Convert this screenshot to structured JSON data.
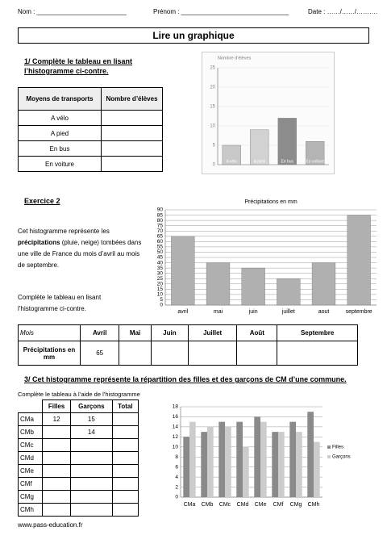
{
  "header": {
    "name": "Nom : _________________________",
    "firstname": "Prénom : ______________________________",
    "date": "Date : ……/……/………."
  },
  "title": "Lire un graphique",
  "section1": {
    "heading": "1/ Complète le tableau en lisant l’histogramme ci-contre.",
    "table": {
      "columns": [
        "Moyens de transports",
        "Nombre d’élèves"
      ],
      "rows": [
        "A vélo",
        "A pied",
        "En bus",
        "En voiture"
      ]
    }
  },
  "section2": {
    "heading": "Exercice 2",
    "text_start": "Cet histogramme représente les",
    "text_bold": "précipitations",
    "text_end": "(pluie, neige) tombées dans une ville de France du mois d’avril au mois de septembre.",
    "instruction": "Complète le tableau en lisant l’histogramme ci-contre.",
    "table": {
      "columns": [
        "Mois",
        "Avril",
        "Mai",
        "Juin",
        "Juillet",
        "Août",
        "Septembre"
      ],
      "row_label": "Précipitations en mm",
      "row_values": [
        65
      ]
    }
  },
  "section3": {
    "heading": "3/ Cet histogramme représente la répartition des filles et des garçons de CM d’une commune.",
    "instruction": "Complète le tableau à l’aide de l’histogramme",
    "table": {
      "columns": [
        "Filles",
        "Garçons",
        "Total"
      ],
      "rows": [
        {
          "label": "CMa",
          "filles": 12,
          "garcons": 15
        },
        {
          "label": "CMb",
          "garcons": 14
        },
        {
          "label": "CMc"
        },
        {
          "label": "CMd"
        },
        {
          "label": "CMe"
        },
        {
          "label": "CMf"
        },
        {
          "label": "CMg"
        },
        {
          "label": "CMh"
        }
      ]
    }
  },
  "chart_data": [
    {
      "type": "bar",
      "ylabel": "Nombre d’élèves",
      "categories": [
        "A vélo",
        "A pied",
        "En bus",
        "En voiture"
      ],
      "values": [
        5,
        9,
        12,
        6
      ],
      "colors": [
        "#c8c8c8",
        "#d2d2d2",
        "#8c8c8c",
        "#b4b4b4"
      ],
      "ylim": [
        0,
        25
      ],
      "yticks": [
        0,
        5,
        10,
        15,
        20,
        25
      ],
      "grid": true
    },
    {
      "type": "bar",
      "title": "Précipitations en mm",
      "categories": [
        "avril",
        "mai",
        "juin",
        "juillet",
        "aout",
        "septembre"
      ],
      "values": [
        65,
        40,
        35,
        25,
        40,
        85
      ],
      "color": "#b0b0b0",
      "ylim": [
        0,
        90
      ],
      "yticks": [
        0,
        5,
        10,
        15,
        20,
        25,
        30,
        35,
        40,
        45,
        50,
        55,
        60,
        65,
        70,
        75,
        80,
        85,
        90
      ],
      "grid": true
    },
    {
      "type": "grouped_bar",
      "categories": [
        "CMa",
        "CMb",
        "CMc",
        "CMd",
        "CMe",
        "CMf",
        "CMg",
        "CMh"
      ],
      "series": [
        {
          "name": "Filles",
          "color": "#8a8a8a",
          "values": [
            12,
            13,
            15,
            15,
            16,
            13,
            15,
            17
          ]
        },
        {
          "name": "Garçons",
          "color": "#cccccc",
          "values": [
            15,
            14,
            14,
            10,
            15,
            13,
            13,
            11
          ]
        }
      ],
      "ylim": [
        0,
        18
      ],
      "yticks": [
        0,
        2,
        4,
        6,
        8,
        10,
        12,
        14,
        16,
        18
      ],
      "grid": true,
      "legend": "right"
    }
  ],
  "footer": "www.pass-education.fr"
}
